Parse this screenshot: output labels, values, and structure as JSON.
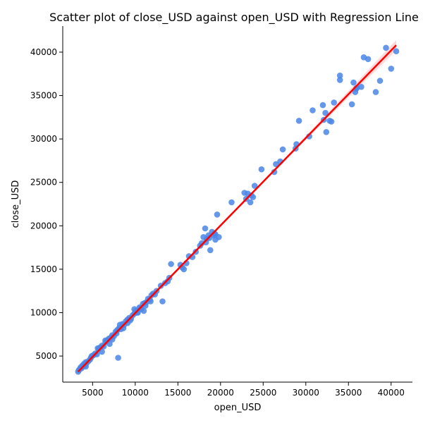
{
  "chart_data": {
    "type": "scatter",
    "title": "Scatter plot of close_USD against open_USD with Regression Line",
    "xlabel": "open_USD",
    "ylabel": "close_USD",
    "xlim": [
      1500,
      42500
    ],
    "ylim": [
      2000,
      43000
    ],
    "x_ticks": [
      5000,
      10000,
      15000,
      20000,
      25000,
      30000,
      35000,
      40000
    ],
    "y_ticks": [
      5000,
      10000,
      15000,
      20000,
      25000,
      30000,
      35000,
      40000
    ],
    "grid": false,
    "legend": "none",
    "point_color": "#4a86e8",
    "line_color": "#ff0000",
    "series": [
      {
        "name": "",
        "x": [
          3300,
          3400,
          3500,
          3600,
          3700,
          3800,
          3900,
          4000,
          4100,
          4200,
          4300,
          4500,
          4700,
          4900,
          5100,
          5300,
          5500,
          5700,
          5900,
          6100,
          6300,
          6500,
          6700,
          6900,
          7100,
          7300,
          7500,
          7700,
          7900,
          8100,
          8300,
          8500,
          8700,
          8900,
          9100,
          9300,
          9500,
          9700,
          9900,
          10100,
          10300,
          10500,
          10700,
          10900,
          11100,
          11300,
          11500,
          11700,
          11900,
          12100,
          12300,
          12500,
          4200,
          5600,
          6500,
          7300,
          8200,
          9100,
          9900,
          10600,
          11200,
          4800,
          6100,
          7000,
          7800,
          8600,
          9400,
          10200,
          11000,
          11800,
          8000,
          13000,
          13200,
          13500,
          13800,
          14000,
          14200,
          15300,
          15500,
          15700,
          16000,
          16300,
          16700,
          17100,
          17600,
          17800,
          18000,
          18200,
          18400,
          18600,
          18800,
          19000,
          19200,
          19400,
          19600,
          19800,
          18300,
          18700,
          19300,
          19400,
          21300,
          22800,
          23000,
          23200,
          23500,
          23800,
          24000,
          23600,
          24800,
          26500,
          26300,
          27000,
          27300,
          28800,
          28900,
          29200,
          30400,
          30800,
          32100,
          32300,
          32400,
          32800,
          33000,
          33300,
          32000,
          34000,
          34000,
          35400,
          35600,
          35800,
          35900,
          36000,
          36500,
          36800,
          37300,
          38200,
          38700,
          39400,
          40000,
          40600
        ],
        "y": [
          3200,
          3400,
          3500,
          3700,
          3600,
          3900,
          3800,
          4100,
          4000,
          4300,
          4200,
          4400,
          4600,
          5000,
          5100,
          5300,
          5200,
          5800,
          6000,
          6200,
          6100,
          6600,
          6800,
          7000,
          7100,
          7400,
          7300,
          7800,
          8000,
          8200,
          8100,
          8700,
          8600,
          9000,
          9200,
          9400,
          9300,
          9700,
          9900,
          10200,
          10000,
          10600,
          10400,
          11000,
          11100,
          11200,
          11600,
          11500,
          12000,
          12200,
          12100,
          12500,
          3800,
          5900,
          6800,
          6900,
          8600,
          8800,
          10400,
          10500,
          10800,
          4800,
          5500,
          6400,
          7600,
          8200,
          9100,
          10000,
          10200,
          11300,
          4800,
          13100,
          11300,
          13400,
          13600,
          14000,
          15600,
          15500,
          15200,
          15000,
          15700,
          16500,
          16400,
          17000,
          17700,
          18000,
          18700,
          19700,
          18500,
          18900,
          17200,
          19300,
          18900,
          19000,
          21300,
          18700,
          18100,
          18600,
          19100,
          18400,
          22700,
          23800,
          23100,
          23700,
          22700,
          23300,
          24600,
          23500,
          26500,
          27100,
          26200,
          27400,
          28800,
          28900,
          29400,
          32100,
          30300,
          33300,
          32200,
          33000,
          30800,
          32100,
          32000,
          34200,
          33900,
          36800,
          37300,
          34000,
          36500,
          35400,
          35800,
          35900,
          36000,
          39400,
          39200,
          35400,
          36700,
          40500,
          38100,
          40100
        ]
      }
    ],
    "regression": {
      "x": [
        3300,
        40600
      ],
      "y": [
        3200,
        40800
      ]
    }
  }
}
